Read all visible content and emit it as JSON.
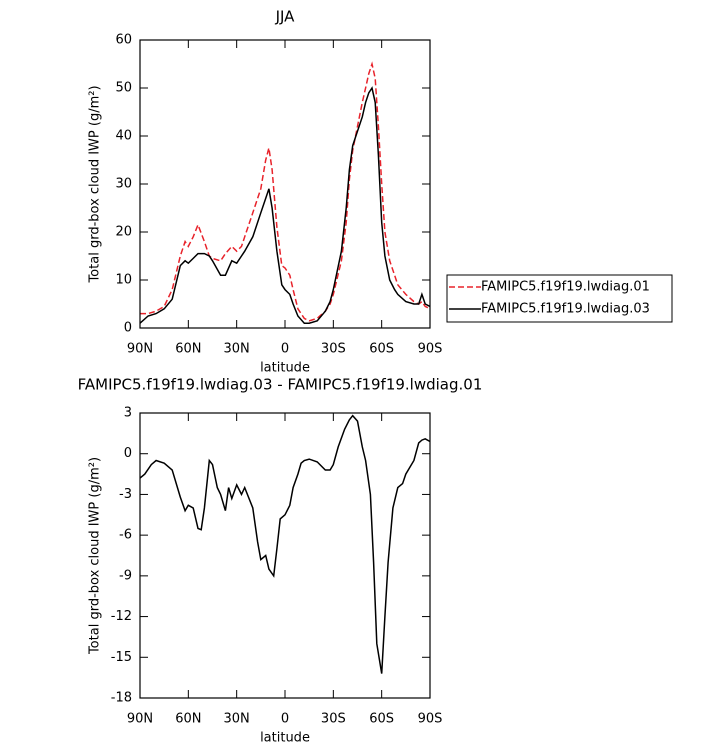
{
  "chart_data": [
    {
      "type": "line",
      "title": "JJA",
      "xlabel": "latitude",
      "ylabel": "Total grd-box cloud IWP (g/m²)",
      "x": [
        90,
        85,
        80,
        75,
        70,
        65,
        62,
        60,
        57,
        54,
        50,
        47,
        45,
        40,
        37,
        33,
        30,
        27,
        25,
        20,
        15,
        12,
        10,
        8,
        5,
        2,
        0,
        -3,
        -5,
        -8,
        -12,
        -15,
        -20,
        -25,
        -28,
        -30,
        -35,
        -38,
        -40,
        -42,
        -45,
        -48,
        -50,
        -52,
        -54,
        -56,
        -58,
        -60,
        -62,
        -65,
        -68,
        -70,
        -75,
        -80,
        -83,
        -85,
        -87,
        -90
      ],
      "series": [
        {
          "name": "FAMIPC5.f19f19.lwdiag.01",
          "color": "#e8232b",
          "dash": true,
          "values": [
            3,
            3,
            3.5,
            4.5,
            8,
            15,
            18,
            17,
            19,
            21.5,
            18,
            15,
            14.5,
            14,
            15.5,
            17,
            16,
            17,
            19,
            24,
            29,
            35,
            37.5,
            33,
            21,
            13,
            12.5,
            11,
            8,
            4,
            2,
            1.5,
            2,
            3.5,
            5,
            7,
            14,
            22,
            31,
            37,
            42,
            47,
            50,
            53,
            55,
            52,
            42,
            30,
            20,
            14,
            11,
            9,
            7,
            5.5,
            5,
            5.5,
            4.5,
            4
          ]
        },
        {
          "name": "FAMIPC5.f19f19.lwdiag.03",
          "color": "#000000",
          "dash": false,
          "values": [
            1,
            2.5,
            3,
            4,
            6,
            13,
            14,
            13.5,
            14.5,
            15.5,
            15.5,
            15,
            14,
            11,
            11,
            14,
            13.5,
            15,
            16,
            19,
            24,
            27,
            29,
            25,
            16,
            9,
            8,
            7,
            5,
            2.5,
            1,
            1,
            1.5,
            3.5,
            5.5,
            8,
            16,
            25,
            33,
            38,
            41,
            44,
            47,
            49,
            50,
            47,
            36,
            22,
            15,
            10,
            8,
            7,
            5.5,
            5,
            5,
            7,
            5,
            4.5
          ]
        }
      ],
      "xlim": [
        90,
        -90
      ],
      "xticks": [
        {
          "value": 90,
          "label": "90N"
        },
        {
          "value": 60,
          "label": "60N"
        },
        {
          "value": 30,
          "label": "30N"
        },
        0,
        {
          "value": -30,
          "label": "30S"
        },
        {
          "value": -60,
          "label": "60S"
        },
        {
          "value": -90,
          "label": "90S"
        }
      ],
      "ylim": [
        0,
        60
      ],
      "yticks": [
        0,
        10,
        20,
        30,
        40,
        50,
        60
      ],
      "legend": "right"
    },
    {
      "type": "line",
      "title": "FAMIPC5.f19f19.lwdiag.03 - FAMIPC5.f19f19.lwdiag.01",
      "xlabel": "latitude",
      "ylabel": "Total grd-box cloud IWP (g/m²)",
      "x": [
        90,
        87,
        83,
        80,
        75,
        70,
        65,
        62,
        60,
        57,
        54,
        52,
        50,
        47,
        45,
        42,
        40,
        37,
        35,
        33,
        30,
        27,
        25,
        20,
        17,
        15,
        12,
        10,
        7,
        5,
        3,
        0,
        -3,
        -5,
        -8,
        -10,
        -12,
        -15,
        -20,
        -25,
        -28,
        -30,
        -33,
        -37,
        -40,
        -42,
        -45,
        -48,
        -50,
        -53,
        -55,
        -57,
        -60,
        -62,
        -64,
        -67,
        -70,
        -73,
        -75,
        -80,
        -83,
        -85,
        -87,
        -90
      ],
      "series": [
        {
          "name": null,
          "color": "#000000",
          "dash": false,
          "values": [
            -1.8,
            -1.5,
            -0.8,
            -0.5,
            -0.7,
            -1.2,
            -3.2,
            -4.2,
            -3.8,
            -4,
            -5.5,
            -5.6,
            -4,
            -0.5,
            -0.8,
            -2.5,
            -3,
            -4.2,
            -2.5,
            -3.3,
            -2.3,
            -3,
            -2.5,
            -4,
            -6.5,
            -7.8,
            -7.5,
            -8.5,
            -9,
            -7,
            -4.8,
            -4.5,
            -3.8,
            -2.5,
            -1.5,
            -0.7,
            -0.5,
            -0.4,
            -0.6,
            -1.2,
            -1.2,
            -0.8,
            0.5,
            1.8,
            2.5,
            2.8,
            2.4,
            0.5,
            -0.5,
            -3,
            -8,
            -14,
            -16.2,
            -12,
            -8,
            -4,
            -2.5,
            -2.2,
            -1.5,
            -0.5,
            0.8,
            1,
            1.1,
            0.9
          ]
        }
      ],
      "xlim": [
        90,
        -90
      ],
      "xticks": [
        {
          "value": 90,
          "label": "90N"
        },
        {
          "value": 60,
          "label": "60N"
        },
        {
          "value": 30,
          "label": "30N"
        },
        0,
        {
          "value": -30,
          "label": "30S"
        },
        {
          "value": -60,
          "label": "60S"
        },
        {
          "value": -90,
          "label": "90S"
        }
      ],
      "ylim": [
        -18,
        3
      ],
      "yticks": [
        -18,
        -15,
        -12,
        -9,
        -6,
        -3,
        0,
        3
      ]
    }
  ]
}
